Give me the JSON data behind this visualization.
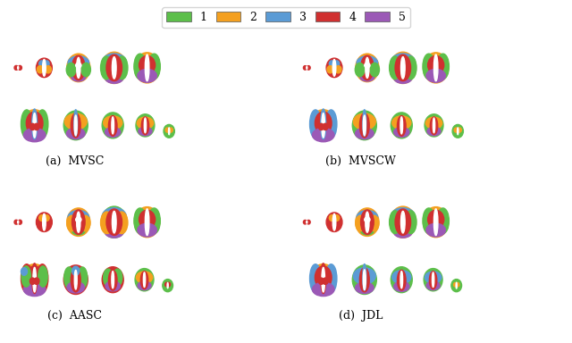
{
  "colors": {
    "green": "#5CBF4A",
    "orange": "#F4A020",
    "blue": "#5B9BD5",
    "red": "#D03030",
    "purple": "#9B59B6",
    "white": "#FFFFFF"
  },
  "legend_labels": [
    "1",
    "2",
    "3",
    "4",
    "5"
  ],
  "panel_labels": [
    "(a)  MVSC",
    "(b)  MVSCW",
    "(c)  AASC",
    "(d)  JDL"
  ],
  "background": "#FFFFFF",
  "fig_width": 6.4,
  "fig_height": 3.84,
  "dpi": 100
}
